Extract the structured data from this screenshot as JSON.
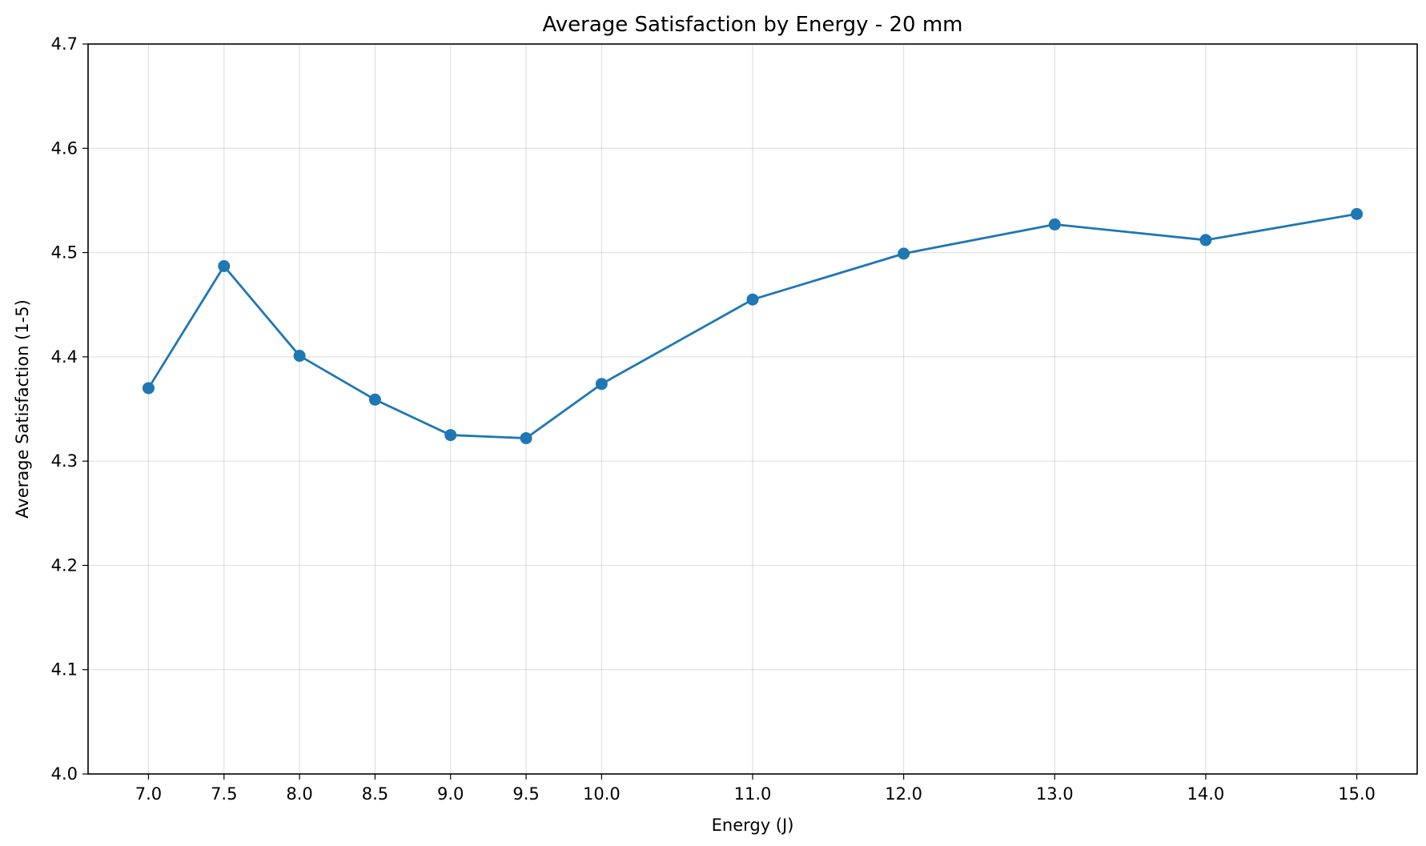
{
  "chart_data": {
    "type": "line",
    "title": "Average Satisfaction by Energy - 20 mm",
    "xlabel": "Energy (J)",
    "ylabel": "Average Satisfaction (1-5)",
    "x": [
      7.0,
      7.5,
      8.0,
      8.5,
      9.0,
      9.5,
      10.0,
      11.0,
      12.0,
      13.0,
      14.0,
      15.0
    ],
    "x_tick_labels": [
      "7.0",
      "7.5",
      "8.0",
      "8.5",
      "9.0",
      "9.5",
      "10.0",
      "11.0",
      "12.0",
      "13.0",
      "14.0",
      "15.0"
    ],
    "series": [
      {
        "values": [
          4.37,
          4.487,
          4.401,
          4.359,
          4.325,
          4.322,
          4.374,
          4.455,
          4.499,
          4.527,
          4.512,
          4.537
        ],
        "color": "#1f77b4",
        "marker": "circle"
      }
    ],
    "ylim": [
      4.0,
      4.7
    ],
    "y_ticks": [
      4.0,
      4.1,
      4.2,
      4.3,
      4.4,
      4.5,
      4.6,
      4.7
    ],
    "y_tick_labels": [
      "4.0",
      "4.1",
      "4.2",
      "4.3",
      "4.4",
      "4.5",
      "4.6",
      "4.7"
    ],
    "grid": true,
    "legend": "none"
  }
}
